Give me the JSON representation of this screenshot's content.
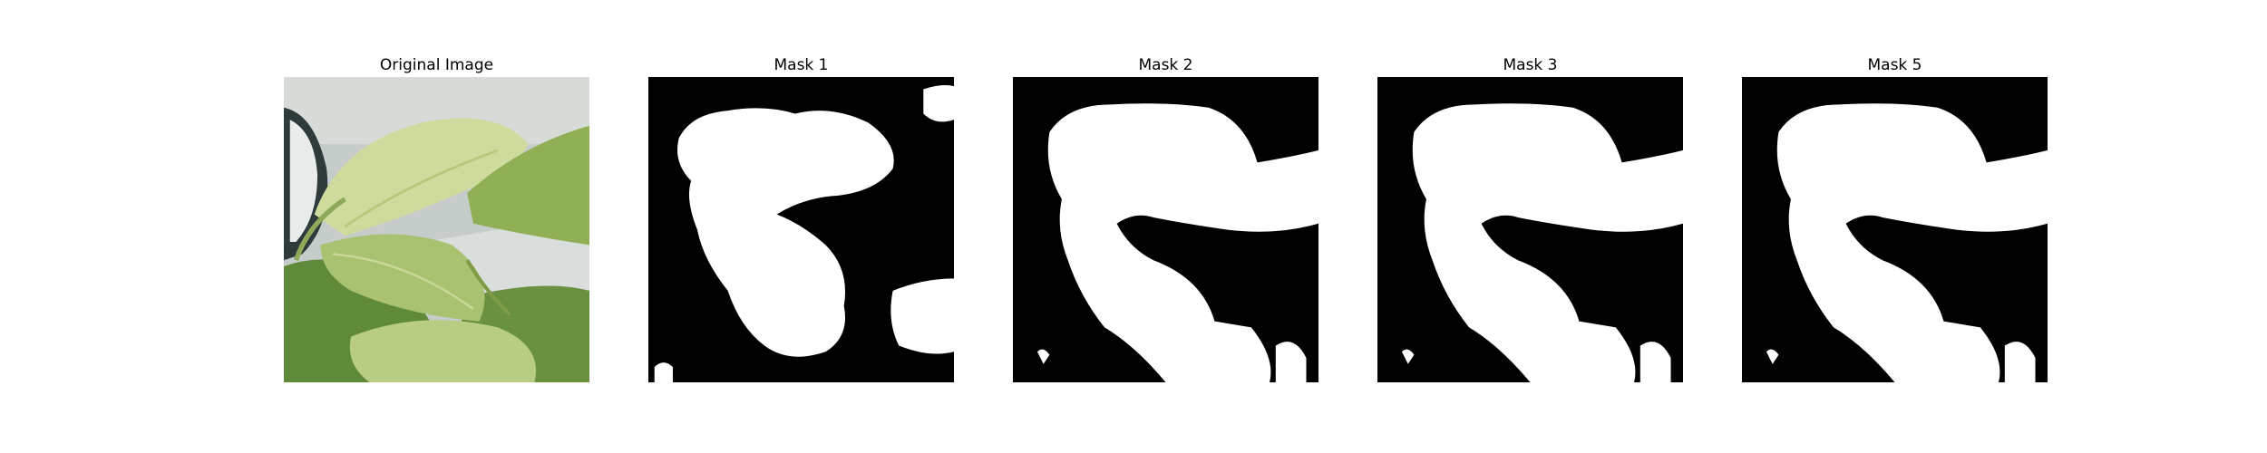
{
  "figure": {
    "panels": [
      {
        "title": "Original Image",
        "kind": "photo"
      },
      {
        "title": "Mask 1",
        "kind": "mask"
      },
      {
        "title": "Mask 2",
        "kind": "mask"
      },
      {
        "title": "Mask 3",
        "kind": "mask"
      },
      {
        "title": "Mask 5",
        "kind": "mask"
      }
    ]
  },
  "colors": {
    "mask_background": "#000000",
    "mask_foreground": "#ffffff",
    "leaf_light": "#d3dea4",
    "leaf_mid": "#9fb86a",
    "leaf_dark": "#4f7a2e",
    "wall": "#c9cfcd"
  }
}
